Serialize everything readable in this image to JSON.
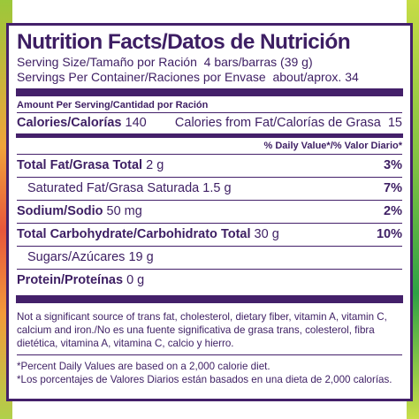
{
  "label": {
    "title": "Nutrition Facts/Datos de Nutrición",
    "serving_size_label": "Serving Size/Tamaño por Ración",
    "serving_size_value": "4 bars/barras (39 g)",
    "servings_label": "Servings Per Container/Raciones por Envase",
    "servings_value": "about/aprox. 34",
    "amount_per_serving": "Amount Per Serving/Cantidad por Ración",
    "calories_label": "Calories/Calorías",
    "calories_value": "140",
    "calories_fat_label": "Calories from Fat/Calorías de Grasa",
    "calories_fat_value": "15",
    "daily_value_header": "% Daily Value*/% Valor Diario*",
    "nutrients": [
      {
        "label": "Total Fat/Grasa Total",
        "amount": "2 g",
        "dv": "3%"
      },
      {
        "label": "Saturated Fat/Grasa Saturada",
        "amount": "1.5 g",
        "dv": "7%"
      },
      {
        "label": "Sodium/Sodio",
        "amount": "50 mg",
        "dv": "2%"
      },
      {
        "label": "Total Carbohydrate/Carbohidrato Total",
        "amount": "30 g",
        "dv": "10%"
      },
      {
        "label": "Sugars/Azúcares",
        "amount": "19 g",
        "dv": ""
      },
      {
        "label": "Protein/Proteínas",
        "amount": "0 g",
        "dv": ""
      }
    ],
    "not_significant_note": "Not a significant source of  trans fat, cholesterol, dietary fiber, vitamin A, vitamin C, calcium and iron./No es una fuente significativa de grasa trans, colesterol, fibra dietética, vitamina A, vitamina C, calcio y hierro.",
    "footnote_en": "*Percent Daily Values are based on a 2,000 calorie diet.",
    "footnote_es": "*Los porcentajes de Valores Diarios están basados en una dieta de 2,000 calorías."
  }
}
